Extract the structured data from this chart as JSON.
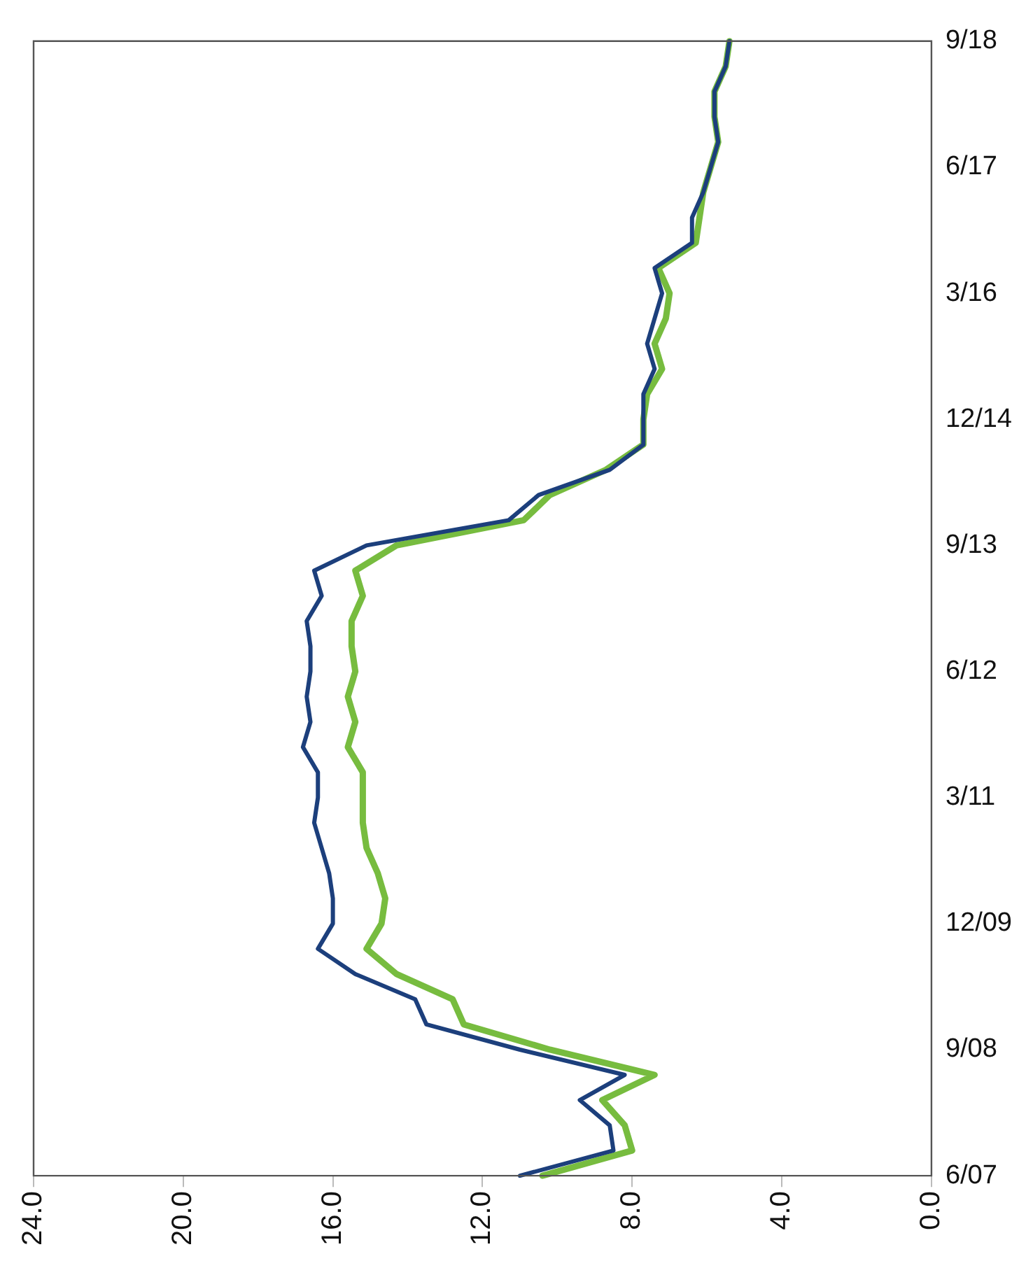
{
  "chart_data": {
    "type": "line",
    "categories": [
      "9/18",
      null,
      null,
      null,
      null,
      "6/17",
      null,
      null,
      null,
      null,
      "3/16",
      null,
      null,
      null,
      null,
      "12/14",
      null,
      null,
      null,
      null,
      "9/13",
      null,
      null,
      null,
      null,
      "6/12",
      null,
      null,
      null,
      null,
      "3/11",
      null,
      null,
      null,
      null,
      "12/09",
      null,
      null,
      null,
      null,
      "9/08",
      null,
      null,
      null,
      null,
      "6/07"
    ],
    "series": [
      {
        "color": "#77bc3f",
        "values": [
          5.4,
          5.5,
          5.8,
          5.8,
          5.7,
          5.9,
          6.1,
          6.2,
          6.3,
          7.3,
          7.0,
          7.1,
          7.4,
          7.2,
          7.6,
          7.7,
          7.7,
          8.7,
          10.2,
          10.9,
          14.3,
          15.4,
          15.2,
          15.5,
          15.5,
          15.4,
          15.6,
          15.4,
          15.6,
          15.2,
          15.2,
          15.2,
          15.1,
          14.8,
          14.6,
          14.7,
          15.1,
          14.3,
          12.8,
          12.5,
          10.2,
          7.4,
          8.8,
          8.2,
          8.0,
          10.4
        ]
      },
      {
        "color": "#1c3f7c",
        "values": [
          5.4,
          5.5,
          5.8,
          5.8,
          5.7,
          5.9,
          6.1,
          6.4,
          6.4,
          7.4,
          7.2,
          7.4,
          7.6,
          7.4,
          7.7,
          7.7,
          7.7,
          8.6,
          10.5,
          11.3,
          15.1,
          16.5,
          16.3,
          16.7,
          16.6,
          16.6,
          16.7,
          16.6,
          16.8,
          16.4,
          16.4,
          16.5,
          16.3,
          16.1,
          16.0,
          16.0,
          16.4,
          15.4,
          13.8,
          13.5,
          11.0,
          8.2,
          9.4,
          8.6,
          8.5,
          11.0
        ]
      }
    ],
    "orientation": "horizontal",
    "xlim": [
      24,
      0
    ],
    "xticks": [
      {
        "value": 24,
        "label": "24.0"
      },
      {
        "value": 20,
        "label": "20.0"
      },
      {
        "value": 16,
        "label": "16.0"
      },
      {
        "value": 12,
        "label": "12.0"
      },
      {
        "value": 8,
        "label": "8.0"
      },
      {
        "value": 4,
        "label": "4.0"
      },
      {
        "value": 0,
        "label": "0.0"
      }
    ],
    "grid": false,
    "legend": false,
    "marker": "none",
    "line_style": "solid"
  }
}
